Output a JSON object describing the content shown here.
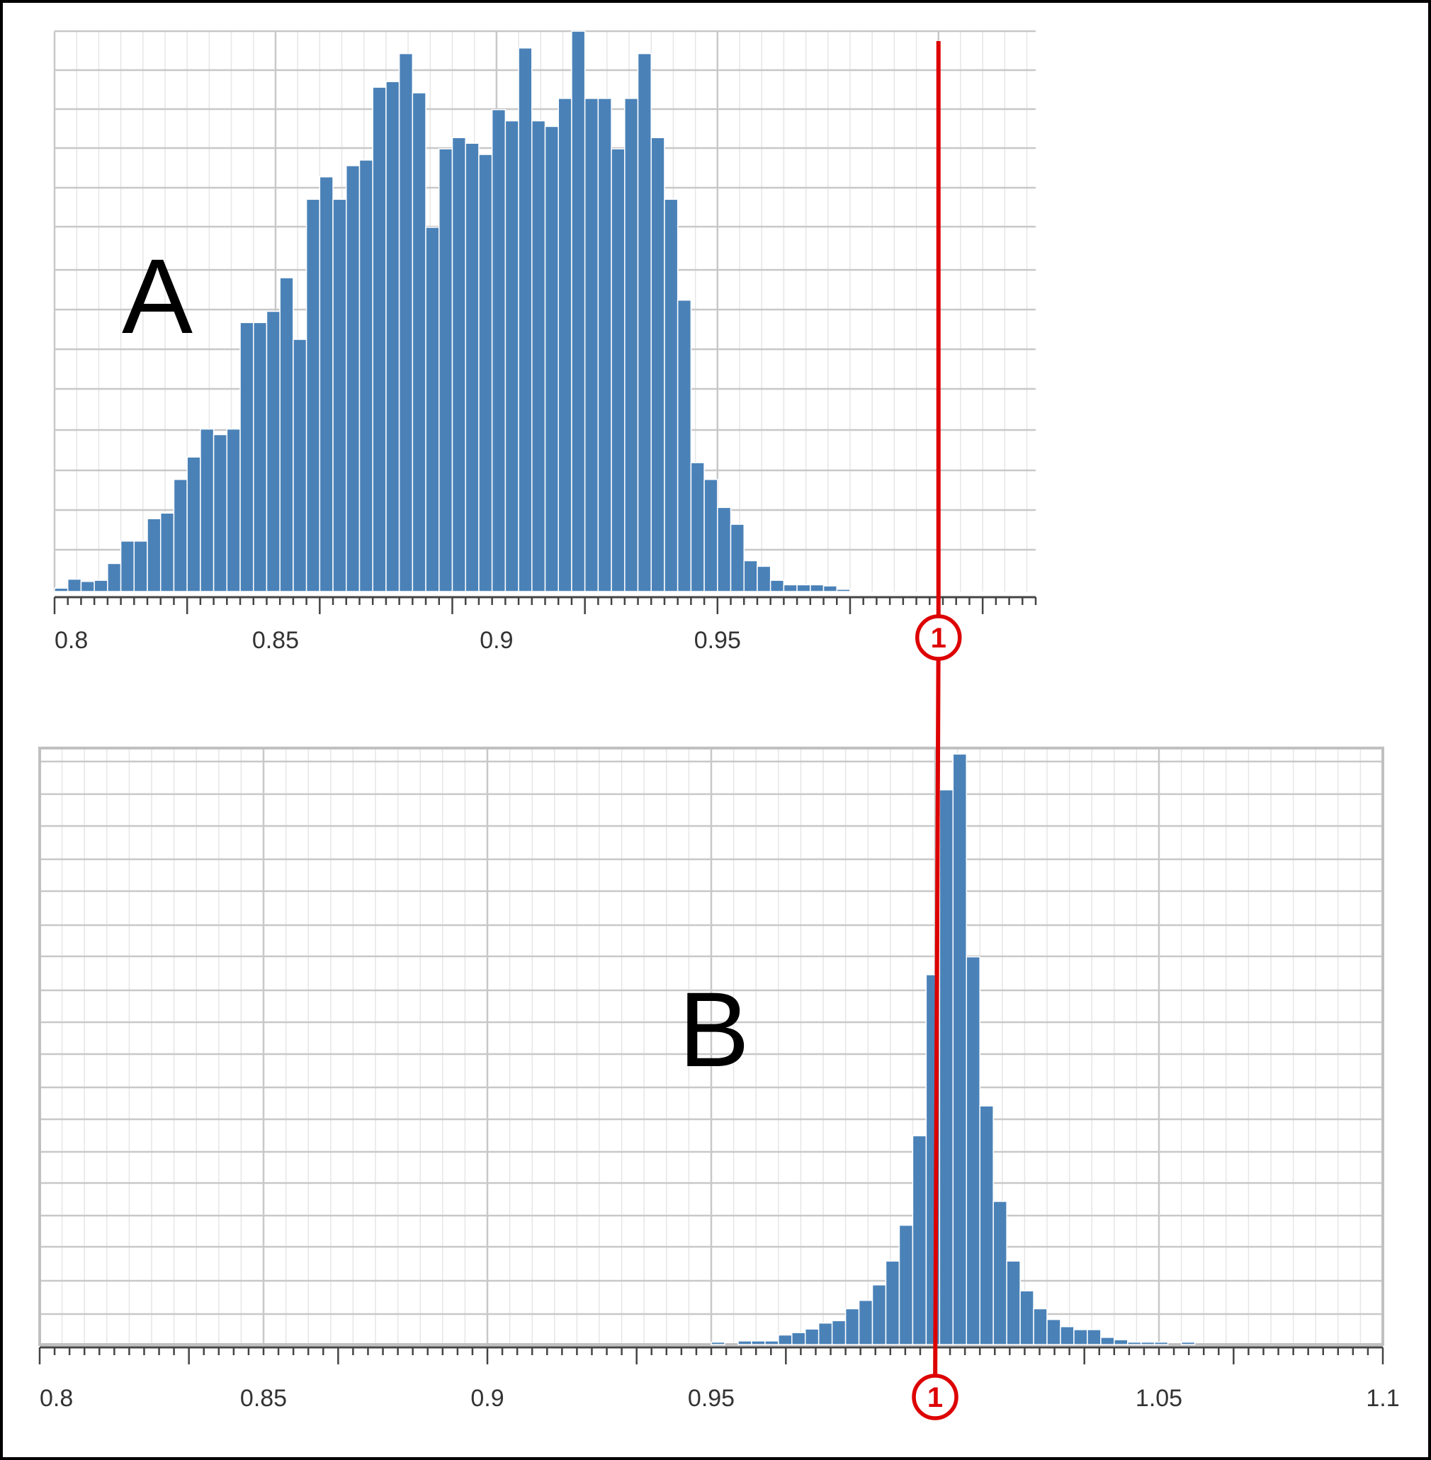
{
  "colors": {
    "bar": "#4a82b8",
    "marker": "#dd0000",
    "label": "#000000"
  },
  "marker": {
    "x": 1.0,
    "label": "1"
  },
  "chart_data": [
    {
      "type": "bar",
      "panel_label": "A",
      "title": "",
      "xlabel": "",
      "ylabel": "",
      "xlim": [
        0.8,
        1.022
      ],
      "ylim": [
        0,
        1
      ],
      "grid": true,
      "x_ticks": [
        0.8,
        0.85,
        0.9,
        0.95
      ],
      "x_tick_labels": [
        "0.8",
        "0.85",
        "0.9",
        "0.95"
      ],
      "bin_start": 0.8,
      "bin_width": 0.003,
      "values": [
        0.006,
        0.022,
        0.018,
        0.02,
        0.05,
        0.09,
        0.09,
        0.13,
        0.14,
        0.2,
        0.24,
        0.29,
        0.28,
        0.29,
        0.48,
        0.48,
        0.5,
        0.56,
        0.45,
        0.7,
        0.74,
        0.7,
        0.76,
        0.77,
        0.9,
        0.91,
        0.96,
        0.89,
        0.65,
        0.79,
        0.81,
        0.8,
        0.78,
        0.86,
        0.84,
        0.97,
        0.84,
        0.83,
        0.88,
        1.0,
        0.88,
        0.88,
        0.79,
        0.88,
        0.96,
        0.81,
        0.7,
        0.52,
        0.23,
        0.2,
        0.15,
        0.12,
        0.055,
        0.045,
        0.02,
        0.012,
        0.012,
        0.012,
        0.01,
        0.004
      ]
    },
    {
      "type": "bar",
      "panel_label": "B",
      "title": "",
      "xlabel": "",
      "ylabel": "",
      "xlim": [
        0.8,
        1.1
      ],
      "ylim": [
        0,
        1
      ],
      "grid": true,
      "x_ticks": [
        0.8,
        0.85,
        0.9,
        0.95,
        1.05,
        1.1
      ],
      "x_tick_labels": [
        "0.8",
        "0.85",
        "0.9",
        "0.95",
        "1.05",
        "1.1"
      ],
      "bin_start": 0.95,
      "bin_width": 0.003,
      "values": [
        0.004,
        0,
        0.006,
        0.006,
        0.006,
        0.016,
        0.02,
        0.026,
        0.036,
        0.04,
        0.06,
        0.074,
        0.1,
        0.14,
        0.2,
        0.35,
        0.62,
        0.93,
        0.99,
        0.65,
        0.4,
        0.24,
        0.14,
        0.09,
        0.06,
        0.042,
        0.03,
        0.025,
        0.025,
        0.012,
        0.008,
        0.004,
        0.004,
        0.004,
        0,
        0.004
      ]
    }
  ]
}
